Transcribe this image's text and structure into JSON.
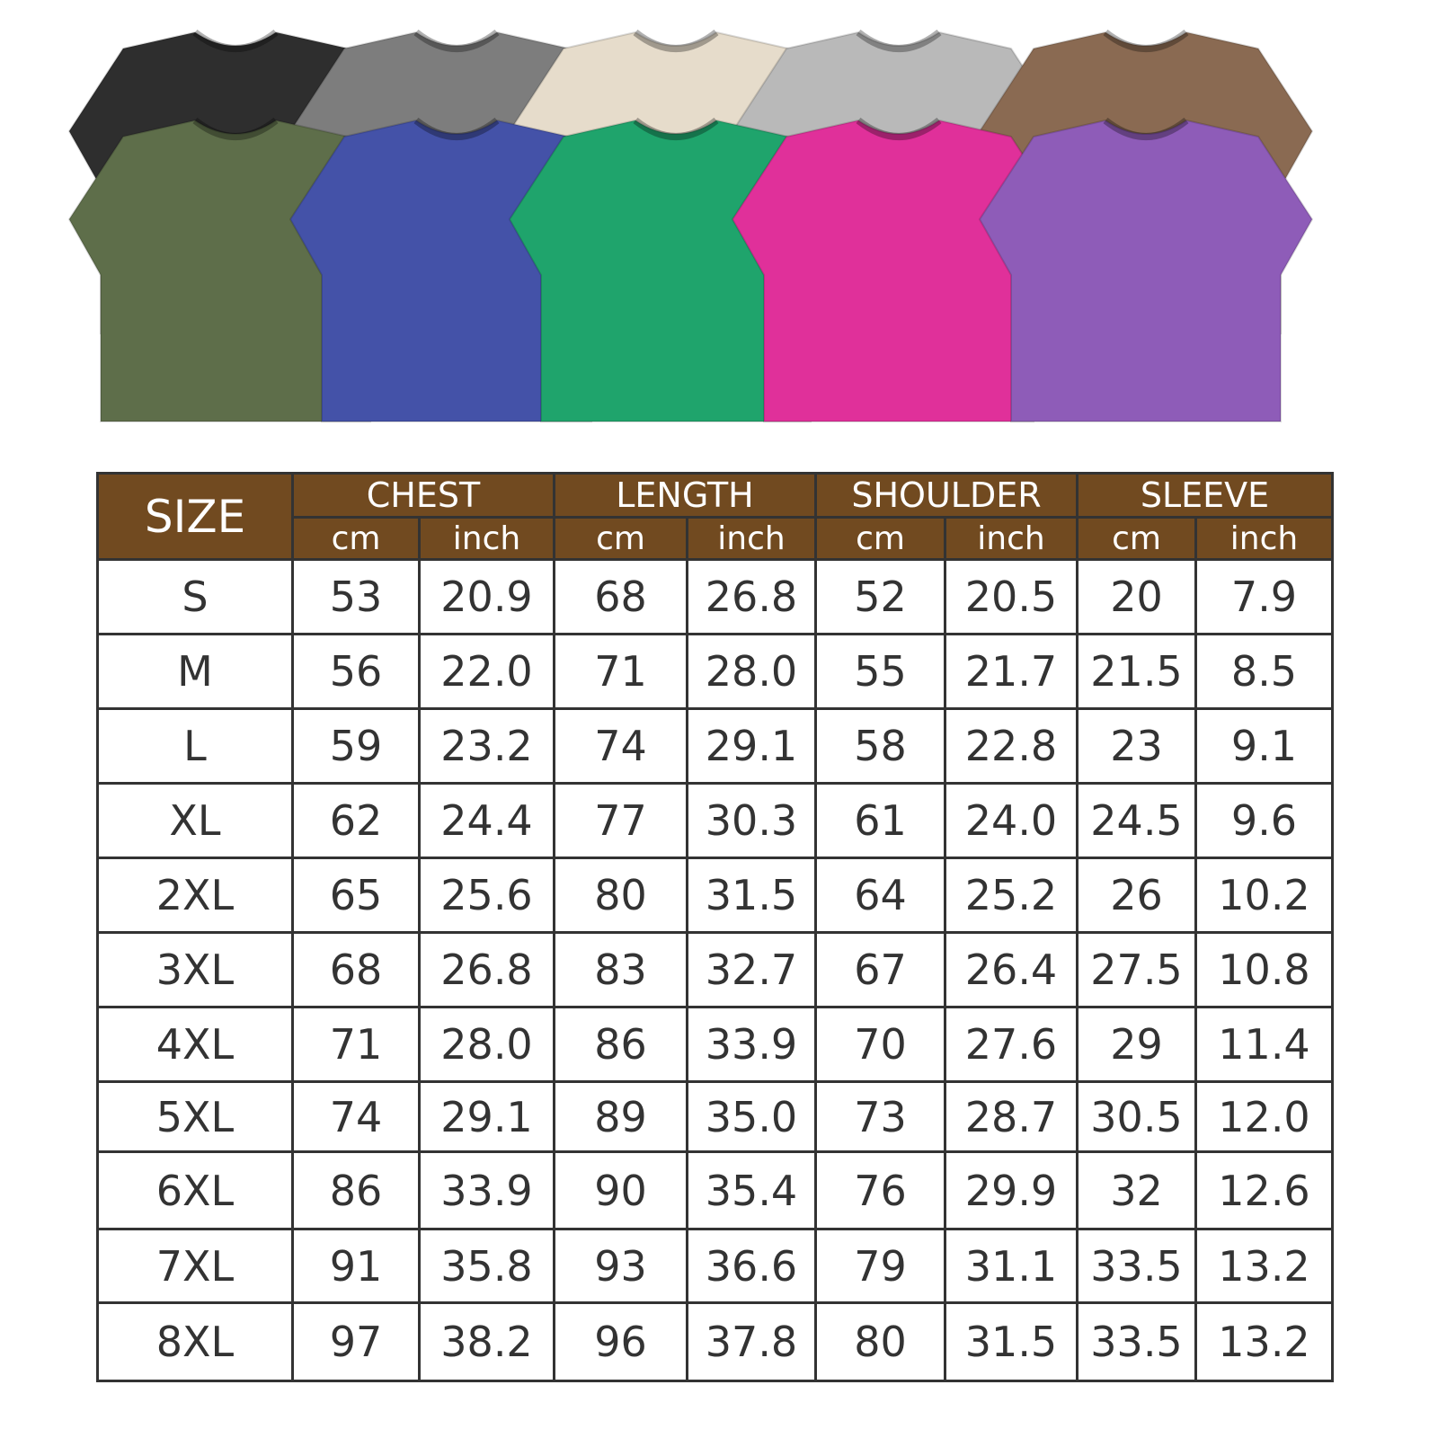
{
  "shirts": {
    "back_row": [
      {
        "color": "#2e2e2e"
      },
      {
        "color": "#7d7d7d"
      },
      {
        "color": "#e6dccb"
      },
      {
        "color": "#b9b9b9"
      },
      {
        "color": "#8a6a52"
      }
    ],
    "front_row": [
      {
        "color": "#5e6e4a"
      },
      {
        "color": "#4452a8"
      },
      {
        "color": "#1fa46c"
      },
      {
        "color": "#e0309a"
      },
      {
        "color": "#8e5cb8"
      }
    ]
  },
  "table": {
    "header_bg": "#714a20",
    "size_label": "SIZE",
    "groups": [
      "CHEST",
      "LENGTH",
      "SHOULDER",
      "SLEEVE"
    ],
    "units": [
      "cm",
      "inch"
    ],
    "rows": [
      [
        "S",
        "53",
        "20.9",
        "68",
        "26.8",
        "52",
        "20.5",
        "20",
        "7.9"
      ],
      [
        "M",
        "56",
        "22.0",
        "71",
        "28.0",
        "55",
        "21.7",
        "21.5",
        "8.5"
      ],
      [
        "L",
        "59",
        "23.2",
        "74",
        "29.1",
        "58",
        "22.8",
        "23",
        "9.1"
      ],
      [
        "XL",
        "62",
        "24.4",
        "77",
        "30.3",
        "61",
        "24.0",
        "24.5",
        "9.6"
      ],
      [
        "2XL",
        "65",
        "25.6",
        "80",
        "31.5",
        "64",
        "25.2",
        "26",
        "10.2"
      ],
      [
        "3XL",
        "68",
        "26.8",
        "83",
        "32.7",
        "67",
        "26.4",
        "27.5",
        "10.8"
      ],
      [
        "4XL",
        "71",
        "28.0",
        "86",
        "33.9",
        "70",
        "27.6",
        "29",
        "11.4"
      ],
      [
        "5XL",
        "74",
        "29.1",
        "89",
        "35.0",
        "73",
        "28.7",
        "30.5",
        "12.0"
      ],
      [
        "6XL",
        "86",
        "33.9",
        "90",
        "35.4",
        "76",
        "29.9",
        "32",
        "12.6"
      ],
      [
        "7XL",
        "91",
        "35.8",
        "93",
        "36.6",
        "79",
        "31.1",
        "33.5",
        "13.2"
      ],
      [
        "8XL",
        "97",
        "38.2",
        "96",
        "37.8",
        "80",
        "31.5",
        "33.5",
        "13.2"
      ]
    ]
  }
}
